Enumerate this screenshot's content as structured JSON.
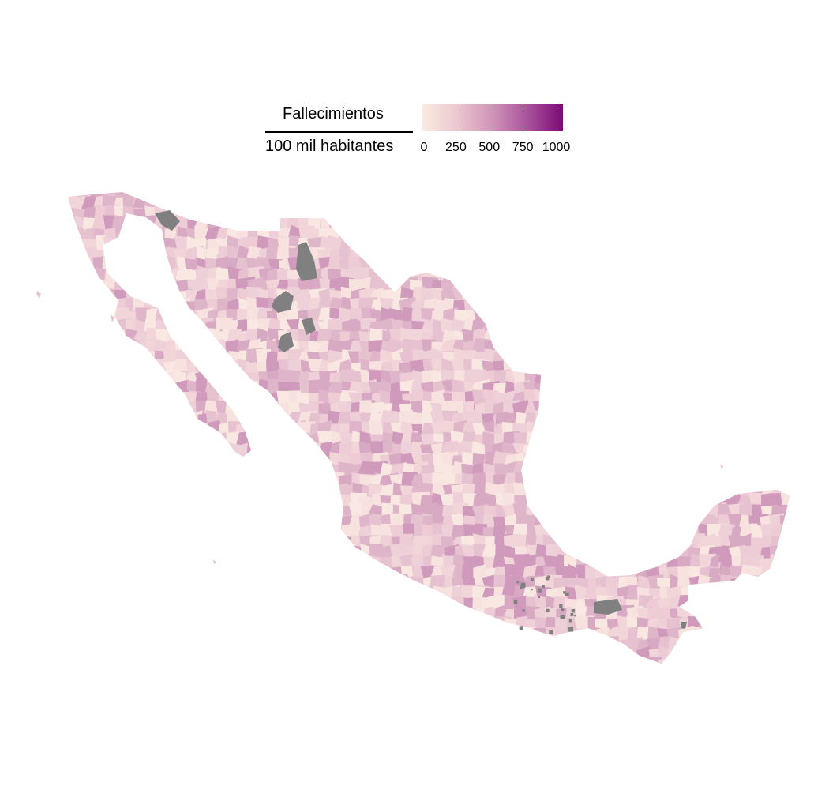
{
  "legend": {
    "numerator": "Fallecimientos",
    "denominator": "100 mil habitantes",
    "scale_min": 0,
    "scale_max": 1050,
    "ticks": [
      {
        "value": 0,
        "label": "0"
      },
      {
        "value": 250,
        "label": "250"
      },
      {
        "value": 500,
        "label": "500"
      },
      {
        "value": 750,
        "label": "750"
      },
      {
        "value": 1000,
        "label": "1000"
      }
    ],
    "colors": [
      "#fbeadf",
      "#ebc7cf",
      "#cf93b8",
      "#a9529c",
      "#7c0a76"
    ]
  },
  "map": {
    "subject": "Mexico municipalities",
    "fill_default": "#e8c6d0",
    "no_data_color": "#808080"
  }
}
